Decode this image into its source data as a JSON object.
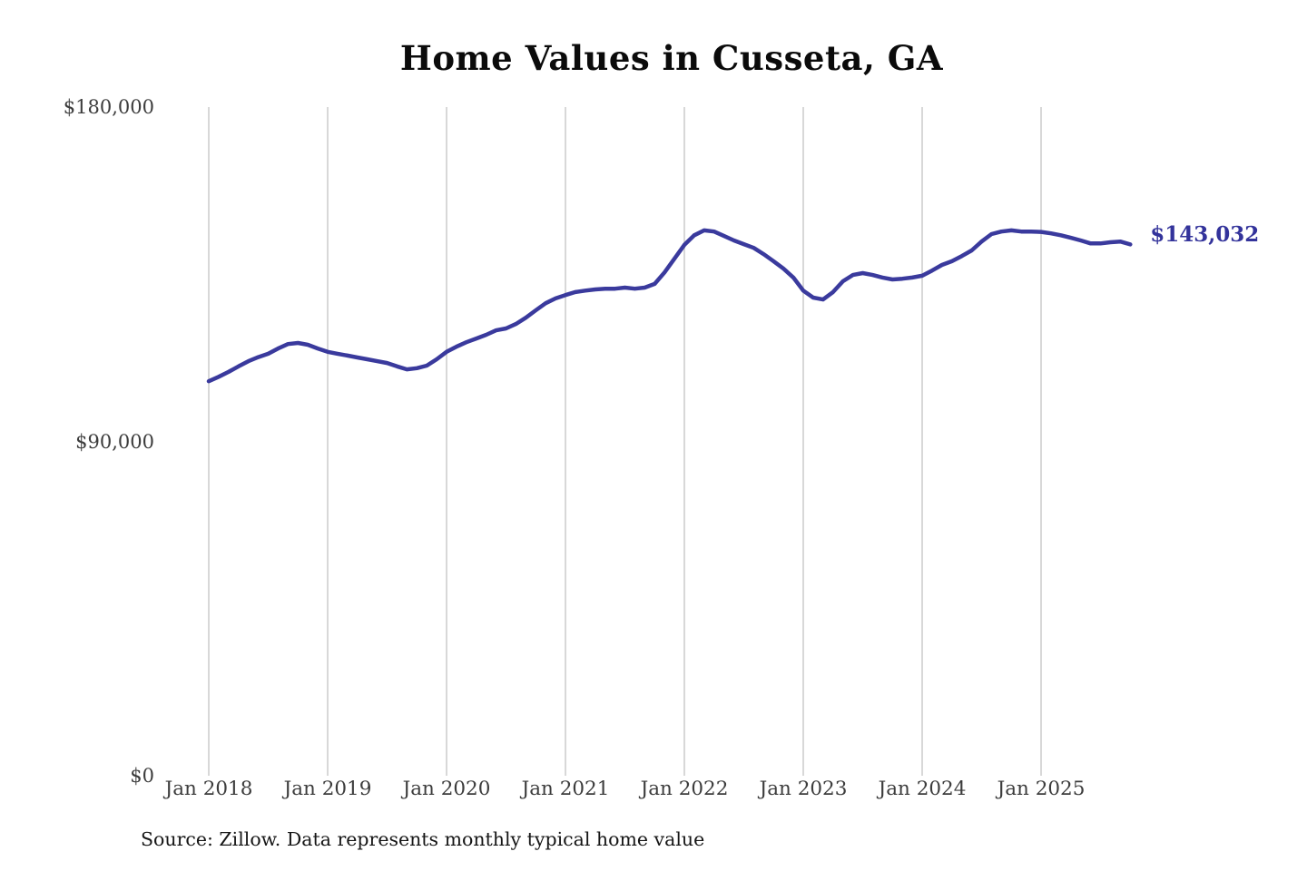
{
  "chart": {
    "title": "Home Values in Cusseta, GA",
    "end_label": "$143,032",
    "source_note": "Source: Zillow. Data represents monthly typical home value",
    "colors": {
      "line": "#3a3a9d",
      "end_label": "#33339b",
      "gridline": "#cccccc",
      "tick_text": "#3c3c3c",
      "title_text": "#0b0b0b",
      "background": "#ffffff"
    }
  },
  "chart_data": {
    "type": "line",
    "title": "Home Values in Cusseta, GA",
    "xlabel": "",
    "ylabel": "",
    "ylim": [
      0,
      180000
    ],
    "grid": "vertical-yearly",
    "legend": "none",
    "x_unit": "month",
    "x_start": "2018-01",
    "x_end": "2025-10",
    "x_tick_labels": [
      "Jan 2018",
      "Jan 2019",
      "Jan 2020",
      "Jan 2021",
      "Jan 2022",
      "Jan 2023",
      "Jan 2024",
      "Jan 2025"
    ],
    "y_ticks": [
      {
        "value": 0,
        "label": "$0"
      },
      {
        "value": 90000,
        "label": "$90,000"
      },
      {
        "value": 180000,
        "label": "$180,000"
      }
    ],
    "annotations": [
      {
        "text": "$143,032",
        "position": "line-end"
      }
    ],
    "series": [
      {
        "name": "Monthly typical home value",
        "color": "#3a3a9d",
        "final_value": 143032,
        "values": [
          106200,
          107400,
          108700,
          110200,
          111600,
          112700,
          113600,
          115000,
          116200,
          116500,
          116000,
          115000,
          114100,
          113600,
          113100,
          112600,
          112100,
          111600,
          111100,
          110200,
          109400,
          109700,
          110400,
          112100,
          114100,
          115500,
          116700,
          117700,
          118700,
          119900,
          120400,
          121600,
          123300,
          125300,
          127200,
          128500,
          129400,
          130200,
          130600,
          130900,
          131100,
          131100,
          131400,
          131100,
          131400,
          132400,
          135500,
          139200,
          142900,
          145500,
          146800,
          146500,
          145300,
          144100,
          143100,
          142100,
          140400,
          138500,
          136500,
          134100,
          130600,
          128700,
          128200,
          130200,
          133100,
          134800,
          135300,
          134800,
          134100,
          133600,
          133800,
          134100,
          134600,
          136000,
          137500,
          138500,
          139900,
          141400,
          143800,
          145800,
          146500,
          146800,
          146500,
          146500,
          146400,
          146000,
          145500,
          144800,
          144100,
          143300,
          143300,
          143600,
          143800,
          143032
        ]
      }
    ]
  }
}
